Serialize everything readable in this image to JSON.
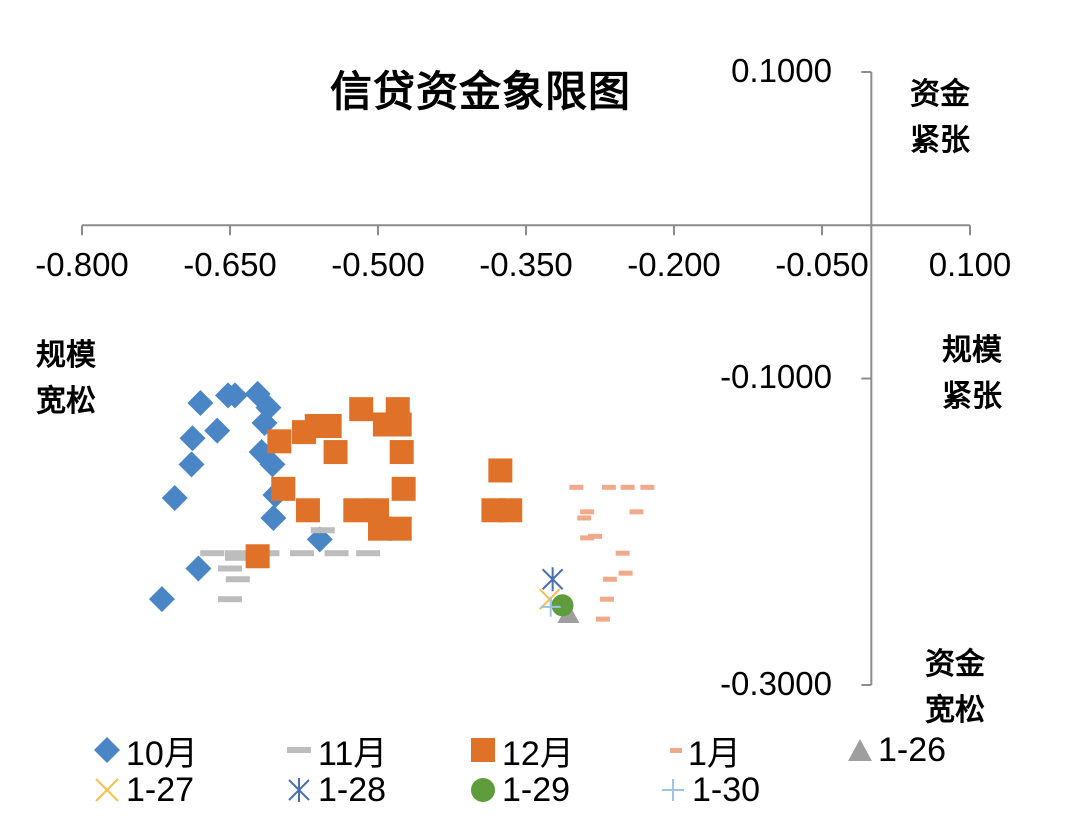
{
  "chart_data": {
    "type": "scatter",
    "title": "信贷资金象限图",
    "xlabel": "",
    "ylabel": "",
    "xlim": [
      -0.8,
      0.1
    ],
    "ylim": [
      -0.3,
      0.1
    ],
    "x_ticks": [
      "-0.800",
      "-0.650",
      "-0.500",
      "-0.350",
      "-0.200",
      "-0.050",
      "0.100"
    ],
    "y_ticks": [
      "0.1000",
      "-0.1000",
      "-0.3000"
    ],
    "grid": false,
    "legend_position": "bottom",
    "quadrant_labels": {
      "top_right": [
        "资金",
        "紧张"
      ],
      "right": [
        "规模",
        "紧张"
      ],
      "left": [
        "规模",
        "宽松"
      ],
      "bottom_right": [
        "资金",
        "宽松"
      ]
    },
    "series": [
      {
        "name": "10月",
        "marker": "diamond",
        "color": "#4a86c5",
        "points": [
          [
            -0.68,
            -0.116
          ],
          [
            -0.652,
            -0.111
          ],
          [
            -0.645,
            -0.111
          ],
          [
            -0.622,
            -0.11
          ],
          [
            -0.611,
            -0.119
          ],
          [
            -0.615,
            -0.129
          ],
          [
            -0.663,
            -0.134
          ],
          [
            -0.688,
            -0.139
          ],
          [
            -0.618,
            -0.148
          ],
          [
            -0.607,
            -0.156
          ],
          [
            -0.689,
            -0.156
          ],
          [
            -0.706,
            -0.178
          ],
          [
            -0.604,
            -0.176
          ],
          [
            -0.606,
            -0.191
          ],
          [
            -0.559,
            -0.205
          ],
          [
            -0.682,
            -0.224
          ],
          [
            -0.719,
            -0.244
          ]
        ]
      },
      {
        "name": "11月",
        "marker": "dash",
        "color": "#bdbdbd",
        "points": [
          [
            -0.556,
            -0.199
          ],
          [
            -0.668,
            -0.214
          ],
          [
            -0.643,
            -0.214
          ],
          [
            -0.612,
            -0.214
          ],
          [
            -0.577,
            -0.214
          ],
          [
            -0.542,
            -0.214
          ],
          [
            -0.51,
            -0.214
          ],
          [
            -0.643,
            -0.217
          ],
          [
            -0.65,
            -0.224
          ],
          [
            -0.642,
            -0.231
          ],
          [
            -0.65,
            -0.244
          ]
        ]
      },
      {
        "name": "12月",
        "marker": "square",
        "color": "#df7128",
        "points": [
          [
            -0.6,
            -0.141
          ],
          [
            -0.575,
            -0.135
          ],
          [
            -0.562,
            -0.131
          ],
          [
            -0.549,
            -0.131
          ],
          [
            -0.543,
            -0.148
          ],
          [
            -0.517,
            -0.12
          ],
          [
            -0.48,
            -0.12
          ],
          [
            -0.493,
            -0.13
          ],
          [
            -0.478,
            -0.13
          ],
          [
            -0.476,
            -0.148
          ],
          [
            -0.596,
            -0.172
          ],
          [
            -0.474,
            -0.172
          ],
          [
            -0.571,
            -0.186
          ],
          [
            -0.523,
            -0.186
          ],
          [
            -0.501,
            -0.186
          ],
          [
            -0.498,
            -0.198
          ],
          [
            -0.478,
            -0.198
          ],
          [
            -0.376,
            -0.16
          ],
          [
            -0.383,
            -0.186
          ],
          [
            -0.366,
            -0.186
          ],
          [
            -0.622,
            -0.216
          ]
        ]
      },
      {
        "name": "1月",
        "marker": "short-dash",
        "color": "#f0a98a",
        "points": [
          [
            -0.299,
            -0.171
          ],
          [
            -0.266,
            -0.171
          ],
          [
            -0.247,
            -0.171
          ],
          [
            -0.227,
            -0.171
          ],
          [
            -0.288,
            -0.187
          ],
          [
            -0.291,
            -0.191
          ],
          [
            -0.238,
            -0.187
          ],
          [
            -0.288,
            -0.204
          ],
          [
            -0.28,
            -0.203
          ],
          [
            -0.252,
            -0.214
          ],
          [
            -0.249,
            -0.227
          ],
          [
            -0.265,
            -0.231
          ],
          [
            -0.268,
            -0.244
          ],
          [
            -0.272,
            -0.257
          ]
        ]
      },
      {
        "name": "1-26",
        "marker": "triangle",
        "color": "#9e9e9e",
        "points": [
          [
            -0.307,
            -0.253
          ]
        ]
      },
      {
        "name": "1-27",
        "marker": "x",
        "color": "#f2c14e",
        "points": [
          [
            -0.326,
            -0.244
          ]
        ]
      },
      {
        "name": "1-28",
        "marker": "asterisk",
        "color": "#4a6fb0",
        "points": [
          [
            -0.323,
            -0.231
          ]
        ]
      },
      {
        "name": "1-29",
        "marker": "circle",
        "color": "#5e9c3c",
        "points": [
          [
            -0.313,
            -0.248
          ]
        ]
      },
      {
        "name": "1-30",
        "marker": "plus",
        "color": "#9dc3e6",
        "points": [
          [
            -0.325,
            -0.249
          ]
        ]
      }
    ]
  },
  "axis": {
    "color": "#8c8c8c"
  }
}
